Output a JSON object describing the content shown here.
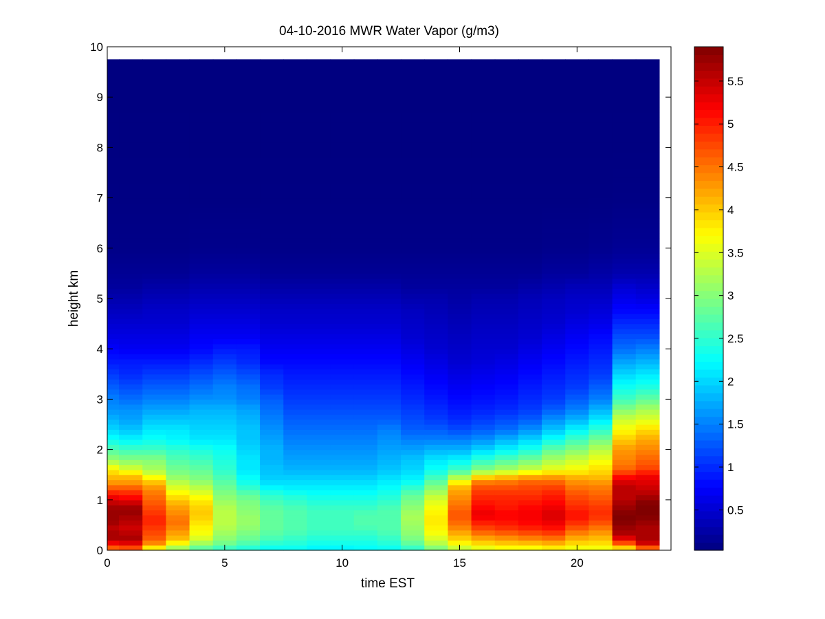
{
  "chart_data": {
    "type": "heatmap",
    "title": "04-10-2016 MWR Water Vapor (g/m3)",
    "xlabel": "time EST",
    "ylabel": "height km",
    "xlim": [
      0,
      24
    ],
    "ylim": [
      0,
      10
    ],
    "x_ticks": [
      0,
      5,
      10,
      15,
      20
    ],
    "x_tick_labels": [
      "0",
      "5",
      "10",
      "15",
      "20"
    ],
    "y_ticks": [
      0,
      1,
      2,
      3,
      4,
      5,
      6,
      7,
      8,
      9,
      10
    ],
    "y_tick_labels": [
      "0",
      "1",
      "2",
      "3",
      "4",
      "5",
      "6",
      "7",
      "8",
      "9",
      "10"
    ],
    "colormap": "jet",
    "colorbar": {
      "range": [
        0.03,
        5.9
      ],
      "ticks": [
        0.5,
        1,
        1.5,
        2,
        2.5,
        3,
        3.5,
        4,
        4.5,
        5,
        5.5
      ],
      "tick_labels": [
        "0.5",
        "1",
        "1.5",
        "2",
        "2.5",
        "3",
        "3.5",
        "4",
        "4.5",
        "5",
        "5.5"
      ]
    },
    "time_hours": [
      0,
      1,
      2,
      3,
      4,
      5,
      6,
      7,
      8,
      9,
      10,
      11,
      12,
      13,
      14,
      15,
      16,
      17,
      18,
      19,
      20,
      21,
      22,
      23
    ],
    "data_extent_km": 9.75,
    "profile_heights_km": [
      0,
      0.1,
      0.2,
      0.3,
      0.4,
      0.5,
      0.6,
      0.7,
      0.8,
      0.9,
      1.0,
      1.1,
      1.2,
      1.3,
      1.4,
      1.5,
      1.6,
      1.8,
      2.0,
      2.2,
      2.4,
      2.6,
      2.8,
      3.0,
      3.25,
      3.5,
      3.75,
      4.0,
      4.25,
      4.5,
      4.75,
      5.0,
      5.25,
      5.5,
      6.0,
      7.0,
      8.0,
      9.75
    ],
    "values_by_hour": [
      [
        4.3,
        5.0,
        5.5,
        5.8,
        5.5,
        5.6,
        5.8,
        5.7,
        5.8,
        5.6,
        5.4,
        5.1,
        4.8,
        4.4,
        4.2,
        4.0,
        3.8,
        3.1,
        2.7,
        2.3,
        2.0,
        1.8,
        1.6,
        1.5,
        1.3,
        1.1,
        0.9,
        0.75,
        0.6,
        0.5,
        0.4,
        0.3,
        0.2,
        0.15,
        0.08,
        0.05,
        0.04,
        0.03
      ],
      [
        4.4,
        5.1,
        5.6,
        5.7,
        5.4,
        5.5,
        5.6,
        5.7,
        5.8,
        5.6,
        5.3,
        5.0,
        4.8,
        4.4,
        4.2,
        4.0,
        3.5,
        3.0,
        2.6,
        2.2,
        1.9,
        1.7,
        1.6,
        1.4,
        1.2,
        1.0,
        0.9,
        0.7,
        0.6,
        0.5,
        0.4,
        0.3,
        0.2,
        0.15,
        0.08,
        0.05,
        0.04,
        0.03
      ],
      [
        3.4,
        4.2,
        4.6,
        4.7,
        4.8,
        4.9,
        5.0,
        4.9,
        4.8,
        4.7,
        4.6,
        4.5,
        4.4,
        4.2,
        3.9,
        3.5,
        3.2,
        3.0,
        2.6,
        2.3,
        2.1,
        1.9,
        1.7,
        1.5,
        1.3,
        1.1,
        0.9,
        0.7,
        0.6,
        0.5,
        0.45,
        0.35,
        0.25,
        0.15,
        0.08,
        0.05,
        0.04,
        0.03
      ],
      [
        2.9,
        3.5,
        4.0,
        4.2,
        4.3,
        4.5,
        4.5,
        4.4,
        4.3,
        4.2,
        4.0,
        3.8,
        3.6,
        3.4,
        3.2,
        3.0,
        2.9,
        2.7,
        2.5,
        2.2,
        2.1,
        1.9,
        1.7,
        1.5,
        1.3,
        1.1,
        0.9,
        0.7,
        0.6,
        0.5,
        0.45,
        0.35,
        0.25,
        0.15,
        0.08,
        0.05,
        0.04,
        0.03
      ],
      [
        2.6,
        3.0,
        3.4,
        3.6,
        3.7,
        3.8,
        3.9,
        4.0,
        4.0,
        3.9,
        3.8,
        3.6,
        3.4,
        3.2,
        3.0,
        2.9,
        2.8,
        2.6,
        2.4,
        2.1,
        2.0,
        1.9,
        1.8,
        1.6,
        1.4,
        1.2,
        1.0,
        0.8,
        0.7,
        0.6,
        0.5,
        0.4,
        0.3,
        0.2,
        0.1,
        0.05,
        0.04,
        0.03
      ],
      [
        2.4,
        2.8,
        3.0,
        3.1,
        3.2,
        3.3,
        3.3,
        3.3,
        3.3,
        3.2,
        3.1,
        3.0,
        2.9,
        2.8,
        2.7,
        2.6,
        2.5,
        2.4,
        2.3,
        2.1,
        2.0,
        1.9,
        1.8,
        1.6,
        1.5,
        1.3,
        1.1,
        0.9,
        0.7,
        0.6,
        0.5,
        0.4,
        0.3,
        0.2,
        0.1,
        0.05,
        0.04,
        0.03
      ],
      [
        2.3,
        2.6,
        2.8,
        2.9,
        3.0,
        3.1,
        3.1,
        3.1,
        3.0,
        3.0,
        2.9,
        2.8,
        2.6,
        2.4,
        2.3,
        2.2,
        2.1,
        2.1,
        2.0,
        1.9,
        1.9,
        1.8,
        1.7,
        1.5,
        1.4,
        1.2,
        1.0,
        0.9,
        0.7,
        0.6,
        0.5,
        0.4,
        0.3,
        0.2,
        0.1,
        0.05,
        0.04,
        0.03
      ],
      [
        2.2,
        2.4,
        2.6,
        2.7,
        2.8,
        2.8,
        2.8,
        2.8,
        2.8,
        2.7,
        2.6,
        2.5,
        2.3,
        2.1,
        2.0,
        1.9,
        1.9,
        1.8,
        1.8,
        1.7,
        1.6,
        1.5,
        1.4,
        1.3,
        1.1,
        1.0,
        0.8,
        0.7,
        0.6,
        0.5,
        0.45,
        0.35,
        0.25,
        0.15,
        0.08,
        0.05,
        0.04,
        0.03
      ],
      [
        2.2,
        2.4,
        2.5,
        2.6,
        2.7,
        2.7,
        2.7,
        2.7,
        2.7,
        2.6,
        2.5,
        2.4,
        2.2,
        2.1,
        2.0,
        1.9,
        1.8,
        1.7,
        1.6,
        1.5,
        1.4,
        1.3,
        1.2,
        1.1,
        1.0,
        0.9,
        0.8,
        0.7,
        0.6,
        0.5,
        0.45,
        0.35,
        0.25,
        0.15,
        0.08,
        0.05,
        0.04,
        0.03
      ],
      [
        2.1,
        2.3,
        2.4,
        2.5,
        2.6,
        2.6,
        2.6,
        2.6,
        2.6,
        2.5,
        2.4,
        2.3,
        2.2,
        2.1,
        2.0,
        1.9,
        1.8,
        1.7,
        1.6,
        1.5,
        1.4,
        1.3,
        1.2,
        1.1,
        1.0,
        0.9,
        0.8,
        0.7,
        0.6,
        0.5,
        0.45,
        0.35,
        0.25,
        0.15,
        0.08,
        0.05,
        0.04,
        0.03
      ],
      [
        2.1,
        2.3,
        2.4,
        2.5,
        2.6,
        2.6,
        2.6,
        2.6,
        2.6,
        2.5,
        2.4,
        2.3,
        2.2,
        2.1,
        2.0,
        1.9,
        1.8,
        1.7,
        1.6,
        1.5,
        1.4,
        1.3,
        1.2,
        1.1,
        1.0,
        0.9,
        0.8,
        0.7,
        0.6,
        0.5,
        0.45,
        0.35,
        0.25,
        0.15,
        0.08,
        0.05,
        0.04,
        0.03
      ],
      [
        2.2,
        2.3,
        2.4,
        2.5,
        2.6,
        2.7,
        2.7,
        2.7,
        2.6,
        2.5,
        2.4,
        2.3,
        2.2,
        2.1,
        2.0,
        1.9,
        1.8,
        1.7,
        1.6,
        1.5,
        1.4,
        1.3,
        1.2,
        1.1,
        1.0,
        0.9,
        0.8,
        0.7,
        0.6,
        0.5,
        0.45,
        0.35,
        0.25,
        0.15,
        0.08,
        0.05,
        0.04,
        0.03
      ],
      [
        2.2,
        2.4,
        2.5,
        2.6,
        2.7,
        2.7,
        2.7,
        2.7,
        2.7,
        2.6,
        2.5,
        2.4,
        2.3,
        2.2,
        2.1,
        2.0,
        1.9,
        1.8,
        1.7,
        1.6,
        1.5,
        1.3,
        1.2,
        1.1,
        1.0,
        0.9,
        0.8,
        0.7,
        0.6,
        0.5,
        0.45,
        0.35,
        0.25,
        0.15,
        0.08,
        0.05,
        0.04,
        0.03
      ],
      [
        2.4,
        2.7,
        2.9,
        3.0,
        3.1,
        3.1,
        3.2,
        3.2,
        3.1,
        3.0,
        2.9,
        2.8,
        2.6,
        2.4,
        2.2,
        2.1,
        2.0,
        1.9,
        1.7,
        1.5,
        1.3,
        1.2,
        1.1,
        1.0,
        0.9,
        0.8,
        0.7,
        0.6,
        0.5,
        0.45,
        0.4,
        0.3,
        0.2,
        0.15,
        0.08,
        0.05,
        0.04,
        0.03
      ],
      [
        2.8,
        3.2,
        3.4,
        3.6,
        3.7,
        3.8,
        3.8,
        3.8,
        3.7,
        3.6,
        3.5,
        3.3,
        3.1,
        2.9,
        2.7,
        2.5,
        2.3,
        2.1,
        1.8,
        1.5,
        1.3,
        1.1,
        1.0,
        0.9,
        0.8,
        0.7,
        0.6,
        0.5,
        0.45,
        0.4,
        0.35,
        0.3,
        0.2,
        0.15,
        0.08,
        0.05,
        0.04,
        0.03
      ],
      [
        3.2,
        3.6,
        3.9,
        4.1,
        4.3,
        4.5,
        4.6,
        4.7,
        4.6,
        4.5,
        4.4,
        4.3,
        4.2,
        4.0,
        3.5,
        3.0,
        2.6,
        2.2,
        1.8,
        1.5,
        1.2,
        1.0,
        0.9,
        0.8,
        0.7,
        0.6,
        0.5,
        0.45,
        0.4,
        0.35,
        0.3,
        0.25,
        0.2,
        0.15,
        0.08,
        0.05,
        0.04,
        0.03
      ],
      [
        3.4,
        3.8,
        4.1,
        4.4,
        4.7,
        4.9,
        5.1,
        5.3,
        5.2,
        5.1,
        5.0,
        4.9,
        4.8,
        4.6,
        4.3,
        3.6,
        3.0,
        2.5,
        2.0,
        1.6,
        1.3,
        1.1,
        0.95,
        0.85,
        0.75,
        0.65,
        0.55,
        0.5,
        0.45,
        0.4,
        0.35,
        0.3,
        0.2,
        0.15,
        0.08,
        0.05,
        0.04,
        0.03
      ],
      [
        3.5,
        3.9,
        4.2,
        4.5,
        4.8,
        5.0,
        5.1,
        5.2,
        5.1,
        5.0,
        5.0,
        4.9,
        4.8,
        4.6,
        4.4,
        3.8,
        3.2,
        2.7,
        2.2,
        1.8,
        1.4,
        1.2,
        1.0,
        0.9,
        0.8,
        0.7,
        0.6,
        0.5,
        0.45,
        0.4,
        0.35,
        0.3,
        0.2,
        0.15,
        0.08,
        0.05,
        0.04,
        0.03
      ],
      [
        3.5,
        3.9,
        4.3,
        4.6,
        4.9,
        5.1,
        5.2,
        5.2,
        5.2,
        5.1,
        5.0,
        4.9,
        4.8,
        4.7,
        4.5,
        4.0,
        3.4,
        2.9,
        2.4,
        2.0,
        1.6,
        1.3,
        1.1,
        1.0,
        0.9,
        0.8,
        0.7,
        0.6,
        0.5,
        0.45,
        0.4,
        0.35,
        0.25,
        0.15,
        0.08,
        0.05,
        0.04,
        0.03
      ],
      [
        3.6,
        4.0,
        4.4,
        4.7,
        5.0,
        5.2,
        5.3,
        5.4,
        5.3,
        5.2,
        5.1,
        5.0,
        4.9,
        4.7,
        4.5,
        4.1,
        3.6,
        3.2,
        2.8,
        2.3,
        1.9,
        1.6,
        1.3,
        1.1,
        1.0,
        0.9,
        0.8,
        0.7,
        0.6,
        0.5,
        0.45,
        0.4,
        0.3,
        0.2,
        0.1,
        0.05,
        0.04,
        0.03
      ],
      [
        3.5,
        3.8,
        4.1,
        4.3,
        4.6,
        4.8,
        5.0,
        5.1,
        5.0,
        4.9,
        4.8,
        4.7,
        4.6,
        4.4,
        4.3,
        4.0,
        3.7,
        3.4,
        3.0,
        2.6,
        2.2,
        1.8,
        1.5,
        1.3,
        1.1,
        1.0,
        0.9,
        0.8,
        0.7,
        0.6,
        0.5,
        0.45,
        0.35,
        0.2,
        0.1,
        0.05,
        0.04,
        0.03
      ],
      [
        3.5,
        3.8,
        4.0,
        4.2,
        4.4,
        4.6,
        4.8,
        4.9,
        4.9,
        4.8,
        4.7,
        4.6,
        4.5,
        4.4,
        4.2,
        4.0,
        3.9,
        3.6,
        3.3,
        2.9,
        2.5,
        2.1,
        1.8,
        1.5,
        1.3,
        1.1,
        1.0,
        0.9,
        0.8,
        0.65,
        0.55,
        0.45,
        0.35,
        0.25,
        0.12,
        0.05,
        0.04,
        0.03
      ],
      [
        3.5,
        4.4,
        5.1,
        5.6,
        5.7,
        5.8,
        5.9,
        5.9,
        5.8,
        5.7,
        5.6,
        5.5,
        5.6,
        5.5,
        5.3,
        5.0,
        4.6,
        4.4,
        4.3,
        4.0,
        3.7,
        3.4,
        3.0,
        2.6,
        2.3,
        2.0,
        1.7,
        1.4,
        1.2,
        1.0,
        0.8,
        0.65,
        0.5,
        0.3,
        0.15,
        0.06,
        0.04,
        0.03
      ],
      [
        4.0,
        5.3,
        5.6,
        5.7,
        5.6,
        5.7,
        5.8,
        5.9,
        5.9,
        5.9,
        5.8,
        5.6,
        5.5,
        5.4,
        5.3,
        5.2,
        4.8,
        4.6,
        4.4,
        4.2,
        3.9,
        3.5,
        3.2,
        2.8,
        2.4,
        2.1,
        1.8,
        1.5,
        1.2,
        1.0,
        0.8,
        0.6,
        0.45,
        0.3,
        0.15,
        0.06,
        0.04,
        0.03
      ]
    ]
  }
}
